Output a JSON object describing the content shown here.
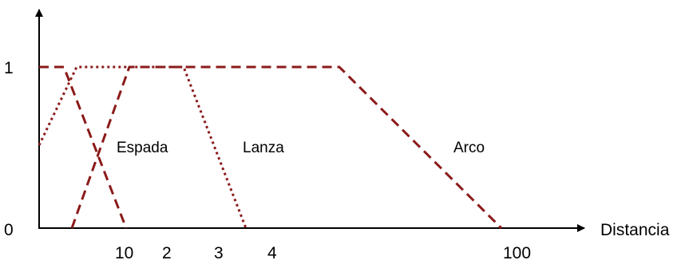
{
  "chart_data": {
    "type": "line",
    "title": "",
    "xlabel": "Distancia",
    "ylabel": "",
    "y_tick_labels": [
      "0",
      "1"
    ],
    "x_tick_labels": [
      "10",
      "2",
      "3",
      "4",
      "100"
    ],
    "series": [
      {
        "name": "Espada",
        "style": "dashed"
      },
      {
        "name": "Lanza",
        "style": "dotted"
      },
      {
        "name": "Arco",
        "style": "dashed"
      }
    ],
    "line_color": "#8B1A1A"
  }
}
